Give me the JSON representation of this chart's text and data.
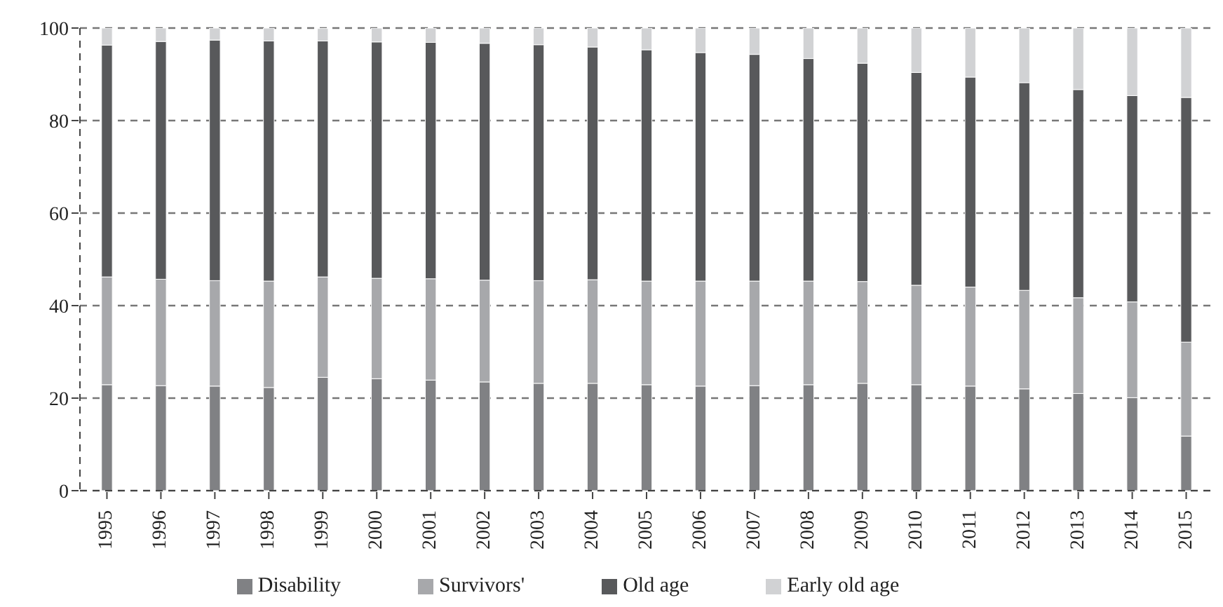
{
  "chart_data": {
    "type": "bar",
    "stacked": true,
    "categories": [
      "1995",
      "1996",
      "1997",
      "1998",
      "1999",
      "2000",
      "2001",
      "2002",
      "2003",
      "2004",
      "2005",
      "2006",
      "2007",
      "2008",
      "2009",
      "2010",
      "2011",
      "2012",
      "2013",
      "2014",
      "2015"
    ],
    "series": [
      {
        "name": "Disability",
        "color": "#808184",
        "values": [
          22.9,
          22.7,
          22.6,
          22.3,
          24.5,
          24.2,
          23.9,
          23.5,
          23.2,
          23.2,
          22.9,
          22.6,
          22.7,
          22.9,
          23.2,
          22.9,
          22.6,
          22.0,
          21.0,
          20.1,
          11.8
        ]
      },
      {
        "name": "Survivors'",
        "color": "#a7a8ab",
        "values": [
          23.3,
          23.0,
          22.8,
          23.0,
          21.7,
          21.7,
          21.9,
          22.0,
          22.2,
          22.4,
          22.4,
          22.7,
          22.6,
          22.4,
          22.0,
          21.5,
          21.4,
          21.3,
          20.7,
          20.7,
          20.3
        ]
      },
      {
        "name": "Old age",
        "color": "#58595b",
        "values": [
          50.1,
          51.4,
          52.0,
          51.9,
          51.0,
          51.1,
          51.1,
          51.2,
          51.0,
          50.3,
          50.0,
          49.4,
          49.0,
          48.1,
          47.2,
          46.0,
          45.4,
          44.9,
          45.0,
          44.6,
          52.9
        ]
      },
      {
        "name": "Early old age",
        "color": "#d1d2d4",
        "values": [
          3.7,
          2.9,
          2.6,
          2.8,
          2.7,
          3.0,
          3.1,
          3.3,
          3.6,
          4.1,
          4.7,
          5.3,
          5.7,
          6.6,
          7.6,
          9.6,
          10.6,
          11.8,
          13.3,
          14.6,
          15.0
        ]
      }
    ],
    "ylim": [
      0,
      100
    ],
    "yticks": [
      0,
      20,
      40,
      60,
      80,
      100
    ],
    "grid": "y",
    "line_style": "dashed",
    "legend": "bottom"
  }
}
